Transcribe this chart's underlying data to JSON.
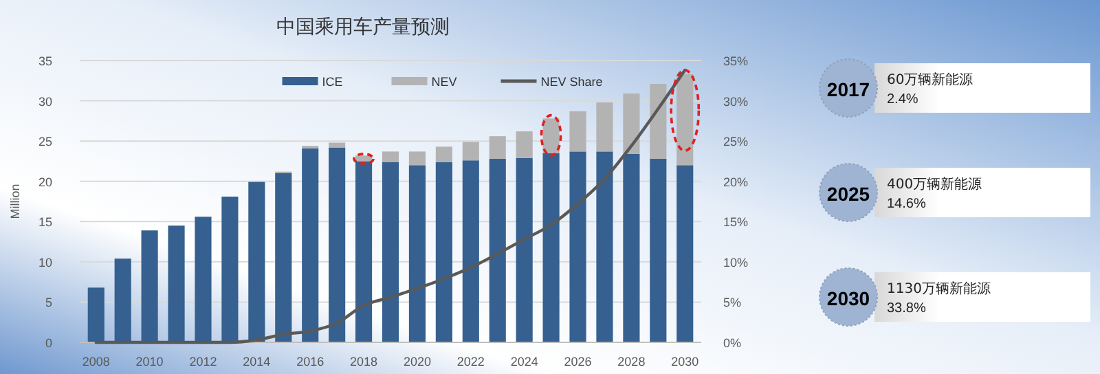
{
  "chart_data": {
    "type": "bar",
    "title": "中国乘用车产量预测",
    "ylabel": "Million",
    "stacked": true,
    "grid": "y",
    "legend": "top",
    "categories": [
      "2008",
      null,
      "2010",
      null,
      "2012",
      null,
      "2014",
      null,
      "2016",
      null,
      "2018",
      null,
      "2020",
      null,
      "2022",
      null,
      "2024",
      null,
      "2026",
      null,
      "2028",
      null,
      "2030"
    ],
    "series": [
      {
        "name": "ICE",
        "color": "#35608f",
        "values": [
          6.8,
          10.4,
          13.9,
          14.5,
          15.6,
          18.1,
          19.9,
          21.0,
          24.1,
          24.2,
          22.5,
          22.4,
          22.0,
          22.4,
          22.6,
          22.8,
          22.9,
          23.5,
          23.7,
          23.7,
          23.4,
          22.8,
          22.0
        ]
      },
      {
        "name": "NEV",
        "color": "#b3b3b3",
        "values": [
          0,
          0,
          0,
          0,
          0,
          0,
          0.1,
          0.2,
          0.3,
          0.6,
          0.7,
          1.3,
          1.7,
          1.9,
          2.3,
          2.8,
          3.3,
          4.3,
          5.0,
          6.1,
          7.5,
          9.3,
          11.3
        ]
      },
      {
        "name": "NEV Share",
        "type": "line",
        "axis": "y2",
        "color": "#595959",
        "values": [
          0,
          0,
          0,
          0,
          0,
          0,
          0.3,
          1.0,
          1.4,
          2.4,
          4.6,
          5.6,
          6.7,
          7.9,
          9.3,
          11.0,
          12.8,
          14.6,
          17.2,
          20.3,
          24.4,
          29.0,
          33.8
        ]
      }
    ],
    "ylim": [
      0,
      35
    ],
    "yticks": [
      0,
      5,
      10,
      15,
      20,
      25,
      30,
      35
    ],
    "y2lim": [
      0,
      35
    ],
    "y2ticks": [
      {
        "value": 0,
        "label": "0%"
      },
      {
        "value": 5,
        "label": "5%"
      },
      {
        "value": 10,
        "label": "10%"
      },
      {
        "value": 15,
        "label": "15%"
      },
      {
        "value": 20,
        "label": "20%"
      },
      {
        "value": 25,
        "label": "25%"
      },
      {
        "value": 30,
        "label": "30%"
      },
      {
        "value": 35,
        "label": "35%"
      }
    ],
    "annotations": [
      "2017",
      "60万辆新能源",
      "2.4%",
      "2025",
      "400万辆新能源",
      "14.6%",
      "2030",
      "1130万辆新能源",
      "33.8%"
    ]
  }
}
